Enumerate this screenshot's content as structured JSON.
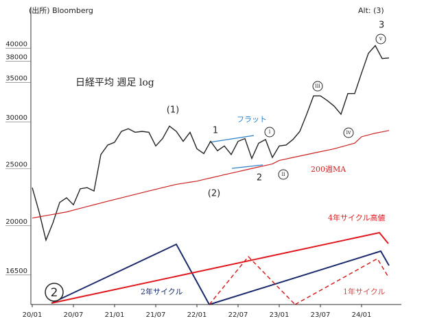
{
  "chart_data": {
    "type": "line",
    "title": "日経平均 週足 log",
    "source": "(出所) Bloomberg",
    "log_scale": true,
    "grid": false,
    "x": [
      "20/01",
      "20/02",
      "20/03",
      "20/04",
      "20/05",
      "20/06",
      "20/07",
      "20/08",
      "20/09",
      "20/10",
      "20/11",
      "20/12",
      "21/01",
      "21/02",
      "21/03",
      "21/04",
      "21/05",
      "21/06",
      "21/07",
      "21/08",
      "21/09",
      "21/10",
      "21/11",
      "21/12",
      "22/01",
      "22/02",
      "22/03",
      "22/04",
      "22/05",
      "22/06",
      "22/07",
      "22/08",
      "22/09",
      "22/10",
      "22/11",
      "22/12",
      "23/01",
      "23/02",
      "23/03",
      "23/04",
      "23/05",
      "23/06",
      "23/07",
      "23/08",
      "23/09",
      "23/10",
      "23/11",
      "23/12",
      "24/01",
      "24/02",
      "24/03",
      "24/04",
      "24/05"
    ],
    "series": [
      {
        "name": "日経平均",
        "color": "#222222",
        "values": [
          23200,
          21100,
          18900,
          20200,
          21900,
          22300,
          21700,
          23100,
          23200,
          22900,
          26400,
          27400,
          27700,
          28900,
          29200,
          28800,
          28900,
          28800,
          27300,
          28100,
          29500,
          28900,
          27800,
          28800,
          27000,
          26500,
          27800,
          26800,
          27300,
          26400,
          27800,
          28100,
          26000,
          27600,
          28000,
          26100,
          27300,
          27400,
          28000,
          28900,
          30900,
          33200,
          33200,
          32600,
          31900,
          30900,
          33500,
          33500,
          36300,
          39200,
          40400,
          38400,
          38500
        ]
      },
      {
        "name": "200週MA",
        "color": "#cc1f1f",
        "values": [
          20600,
          20700,
          20800,
          20900,
          21000,
          21100,
          21250,
          21400,
          21550,
          21700,
          21850,
          22000,
          22150,
          22300,
          22450,
          22600,
          22750,
          22900,
          23050,
          23200,
          23350,
          23500,
          23600,
          23700,
          23800,
          23950,
          24100,
          24250,
          24400,
          24550,
          24700,
          24850,
          25000,
          25150,
          25300,
          25450,
          25800,
          25950,
          26100,
          26250,
          26400,
          26550,
          26700,
          26850,
          27000,
          27200,
          27400,
          27600,
          28300,
          28500,
          28700,
          28850,
          29000
        ]
      }
    ],
    "ylim": [
      14700,
      47000
    ],
    "yticks": [
      16500,
      20000,
      25000,
      30000,
      35000,
      38000,
      40000
    ],
    "xticks": [
      "20/01",
      "20/07",
      "21/01",
      "21/07",
      "22/01",
      "22/07",
      "23/01",
      "23/07",
      "24/01"
    ],
    "annotations": [
      "Alt: (3)",
      "3",
      "v",
      "(1)",
      "iii",
      "フラット",
      "1",
      "i",
      "iv",
      "200週MA",
      "ii",
      "2",
      "(2)",
      "4年サイクル高値",
      "2年サイクル",
      "1年サイクル",
      "2"
    ]
  }
}
